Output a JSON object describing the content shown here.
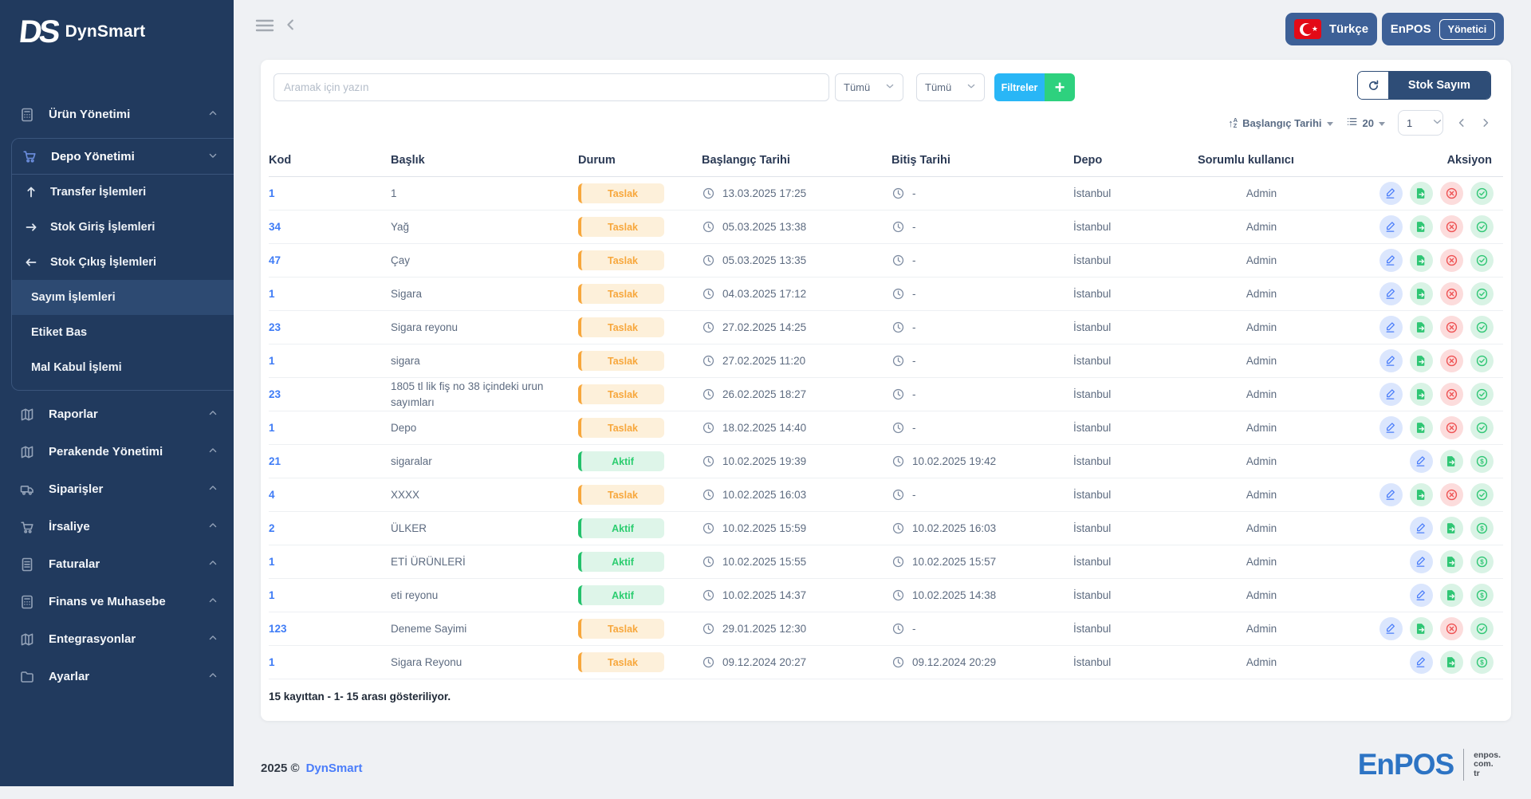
{
  "app": {
    "logo_ds": "DS",
    "logo_name": "DynSmart"
  },
  "colors": {
    "sidebar": "#213A5E",
    "sidebar_active": "#2D4A72",
    "header_button": "#3D6097",
    "filters_button": "#29B6F6",
    "add_button": "#2ED17E",
    "title_chip": "#2E4D77",
    "taslak": "#F7A73C",
    "aktif": "#2CCD70",
    "link": "#3F7CF6",
    "danger": "#EE5253",
    "action_green": "#2FC674",
    "action_blue": "#4A7DFA",
    "enpos_blue": "#2D74C4",
    "flag_red": "#E30A17"
  },
  "sidebar": {
    "items": [
      {
        "label": "Ürün Yönetimi",
        "icon": "calculator-icon",
        "chevron": "up"
      },
      {
        "label": "Depo Yönetimi",
        "icon": "cart-icon",
        "chevron": "down",
        "children": [
          {
            "label": "Transfer İşlemleri",
            "icon": "arrow-up-icon"
          },
          {
            "label": "Stok Giriş İşlemleri",
            "icon": "arrow-right-icon"
          },
          {
            "label": "Stok Çıkış İşlemleri",
            "icon": "arrow-left-icon"
          },
          {
            "label": "Sayım İşlemleri",
            "active": true
          },
          {
            "label": "Etiket Bas"
          },
          {
            "label": "Mal Kabul İşlemi"
          }
        ]
      },
      {
        "label": "Raporlar",
        "icon": "map-icon",
        "chevron": "up"
      },
      {
        "label": "Perakende Yönetimi",
        "icon": "map-icon",
        "chevron": "up"
      },
      {
        "label": "Siparişler",
        "icon": "truck-icon",
        "chevron": "up"
      },
      {
        "label": "İrsaliye",
        "icon": "cart-icon",
        "chevron": "up"
      },
      {
        "label": "Faturalar",
        "icon": "invoice-icon",
        "chevron": "up"
      },
      {
        "label": "Finans ve Muhasebe",
        "icon": "calculator-icon",
        "chevron": "up"
      },
      {
        "label": "Entegrasyonlar",
        "icon": "map-icon",
        "chevron": "up"
      },
      {
        "label": "Ayarlar",
        "icon": "folder-icon",
        "chevron": "up"
      }
    ]
  },
  "header": {
    "language_label": "Türkçe",
    "account_brand": "EnPOS",
    "account_role": "Yönetici"
  },
  "toolbar": {
    "search_placeholder": "Aramak için yazın",
    "filter1": "Tümü",
    "filter2": "Tümü",
    "filters_label": "Filtreler",
    "add_label": "+",
    "page_title": "Stok Sayım"
  },
  "sorting": {
    "sort_label": "Başlangıç Tarihi",
    "page_size": "20",
    "page_number": "1"
  },
  "table": {
    "columns": [
      "Kod",
      "Başlık",
      "Durum",
      "Başlangıç Tarihi",
      "Bitiş Tarihi",
      "Depo",
      "Sorumlu kullanıcı",
      "Aksiyon"
    ],
    "rows": [
      {
        "kod": "1",
        "title": "1",
        "status": "Taslak",
        "start": "13.03.2025 17:25",
        "end": "-",
        "depot": "İstanbul",
        "user": "Admin",
        "actions": [
          "edit",
          "export",
          "cancel",
          "approve"
        ]
      },
      {
        "kod": "34",
        "title": "Yağ",
        "status": "Taslak",
        "start": "05.03.2025 13:38",
        "end": "-",
        "depot": "İstanbul",
        "user": "Admin",
        "actions": [
          "edit",
          "export",
          "cancel",
          "approve"
        ]
      },
      {
        "kod": "47",
        "title": "Çay",
        "status": "Taslak",
        "start": "05.03.2025 13:35",
        "end": "-",
        "depot": "İstanbul",
        "user": "Admin",
        "actions": [
          "edit",
          "export",
          "cancel",
          "approve"
        ]
      },
      {
        "kod": "1",
        "title": "Sigara",
        "status": "Taslak",
        "start": "04.03.2025 17:12",
        "end": "-",
        "depot": "İstanbul",
        "user": "Admin",
        "actions": [
          "edit",
          "export",
          "cancel",
          "approve"
        ]
      },
      {
        "kod": "23",
        "title": "Sigara reyonu",
        "status": "Taslak",
        "start": "27.02.2025 14:25",
        "end": "-",
        "depot": "İstanbul",
        "user": "Admin",
        "actions": [
          "edit",
          "export",
          "cancel",
          "approve"
        ]
      },
      {
        "kod": "1",
        "title": "sigara",
        "status": "Taslak",
        "start": "27.02.2025 11:20",
        "end": "-",
        "depot": "İstanbul",
        "user": "Admin",
        "actions": [
          "edit",
          "export",
          "cancel",
          "approve"
        ]
      },
      {
        "kod": "23",
        "title": "1805 tl lik fiş no 38 içindeki urun sayımları",
        "status": "Taslak",
        "start": "26.02.2025 18:27",
        "end": "-",
        "depot": "İstanbul",
        "user": "Admin",
        "actions": [
          "edit",
          "export",
          "cancel",
          "approve"
        ]
      },
      {
        "kod": "1",
        "title": "Depo",
        "status": "Taslak",
        "start": "18.02.2025 14:40",
        "end": "-",
        "depot": "İstanbul",
        "user": "Admin",
        "actions": [
          "edit",
          "export",
          "cancel",
          "approve"
        ]
      },
      {
        "kod": "21",
        "title": "sigaralar",
        "status": "Aktif",
        "start": "10.02.2025 19:39",
        "end": "10.02.2025 19:42",
        "depot": "İstanbul",
        "user": "Admin",
        "actions": [
          "edit",
          "export",
          "dollar"
        ]
      },
      {
        "kod": "4",
        "title": "XXXX",
        "status": "Taslak",
        "start": "10.02.2025 16:03",
        "end": "-",
        "depot": "İstanbul",
        "user": "Admin",
        "actions": [
          "edit",
          "export",
          "cancel",
          "approve"
        ]
      },
      {
        "kod": "2",
        "title": "ÜLKER",
        "status": "Aktif",
        "start": "10.02.2025 15:59",
        "end": "10.02.2025 16:03",
        "depot": "İstanbul",
        "user": "Admin",
        "actions": [
          "edit",
          "export",
          "dollar"
        ]
      },
      {
        "kod": "1",
        "title": "ETİ ÜRÜNLERİ",
        "status": "Aktif",
        "start": "10.02.2025 15:55",
        "end": "10.02.2025 15:57",
        "depot": "İstanbul",
        "user": "Admin",
        "actions": [
          "edit",
          "export",
          "dollar"
        ]
      },
      {
        "kod": "1",
        "title": "eti reyonu",
        "status": "Aktif",
        "start": "10.02.2025 14:37",
        "end": "10.02.2025 14:38",
        "depot": "İstanbul",
        "user": "Admin",
        "actions": [
          "edit",
          "export",
          "dollar"
        ]
      },
      {
        "kod": "123",
        "title": "Deneme Sayimi",
        "status": "Taslak",
        "start": "29.01.2025 12:30",
        "end": "-",
        "depot": "İstanbul",
        "user": "Admin",
        "actions": [
          "edit",
          "export",
          "cancel",
          "approve"
        ]
      },
      {
        "kod": "1",
        "title": "Sigara Reyonu",
        "status": "Taslak",
        "start": "09.12.2024 20:27",
        "end": "09.12.2024 20:29",
        "depot": "İstanbul",
        "user": "Admin",
        "actions": [
          "edit",
          "export",
          "dollar"
        ]
      }
    ]
  },
  "summary": "15 kayıttan - 1- 15 arası gösteriliyor.",
  "footer": {
    "copyright": "2025 ©",
    "brand": "DynSmart",
    "logo": "EnPOS",
    "logo_site": [
      "enpos.",
      "com.",
      "tr"
    ]
  }
}
